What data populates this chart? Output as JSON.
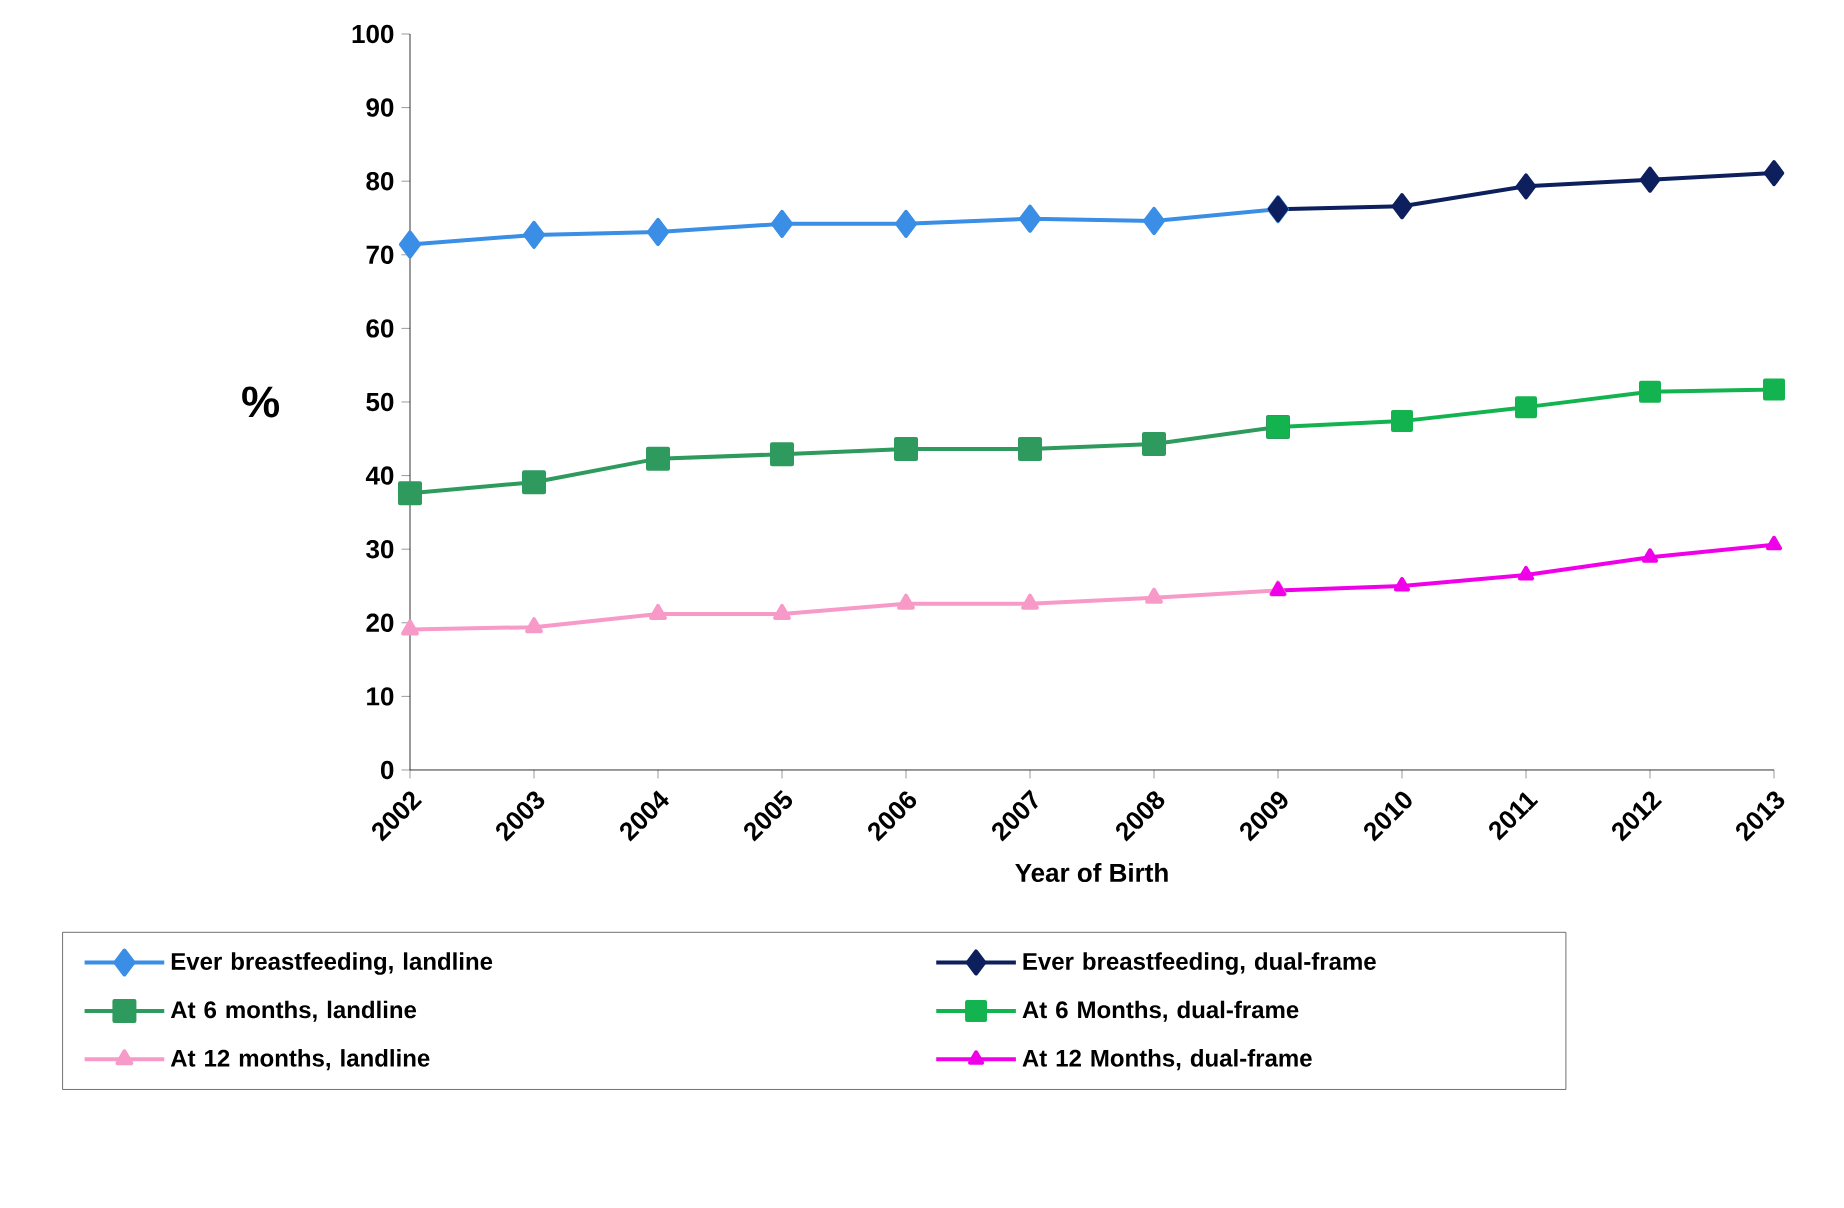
{
  "chart_data": {
    "type": "line",
    "xlabel": "Year of Birth",
    "ylabel": "%",
    "xlim": [
      2002,
      2013
    ],
    "xticks": [
      2002,
      2003,
      2004,
      2005,
      2006,
      2007,
      2008,
      2009,
      2010,
      2011,
      2012,
      2013
    ],
    "ylim": [
      0,
      100
    ],
    "yticks": [
      0,
      10,
      20,
      30,
      40,
      50,
      60,
      70,
      80,
      90,
      100
    ],
    "legend": "bottom",
    "grid": false,
    "series": [
      {
        "name": "Ever breastfeeding, landline",
        "color": "#3a8ee6",
        "marker": "diamond",
        "x": [
          2002,
          2003,
          2004,
          2005,
          2006,
          2007,
          2008,
          2009
        ],
        "values": [
          71.4,
          72.7,
          73.1,
          74.2,
          74.2,
          74.9,
          74.6,
          76.2
        ]
      },
      {
        "name": "Ever breastfeeding, dual-frame",
        "color": "#0d1f5c",
        "marker": "diamond",
        "x": [
          2009,
          2010,
          2011,
          2012,
          2013
        ],
        "values": [
          76.2,
          76.6,
          79.3,
          80.2,
          81.1
        ]
      },
      {
        "name": "At 6 months, landline",
        "color": "#2e9a5e",
        "marker": "square",
        "x": [
          2002,
          2003,
          2004,
          2005,
          2006,
          2007,
          2008,
          2009
        ],
        "values": [
          37.6,
          39.1,
          42.3,
          42.9,
          43.6,
          43.6,
          44.3,
          46.6
        ]
      },
      {
        "name": "At 6 Months, dual-frame",
        "color": "#13b350",
        "marker": "square",
        "x": [
          2009,
          2010,
          2011,
          2012,
          2013
        ],
        "values": [
          46.6,
          47.4,
          49.3,
          51.4,
          51.7
        ]
      },
      {
        "name": "At 12 months, landline",
        "color": "#f79ac8",
        "marker": "triangle",
        "x": [
          2002,
          2003,
          2004,
          2005,
          2006,
          2007,
          2008,
          2009
        ],
        "values": [
          19.1,
          19.4,
          21.2,
          21.2,
          22.6,
          22.6,
          23.4,
          24.4
        ]
      },
      {
        "name": "At 12 Months, dual-frame",
        "color": "#f000e8",
        "marker": "triangle",
        "x": [
          2009,
          2010,
          2011,
          2012,
          2013
        ],
        "values": [
          24.4,
          25.0,
          26.5,
          28.9,
          30.6
        ]
      }
    ]
  }
}
